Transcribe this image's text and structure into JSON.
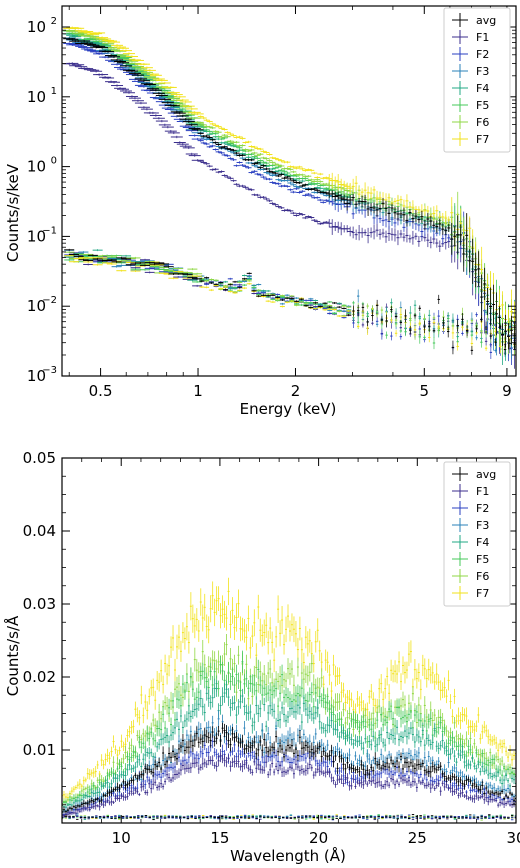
{
  "chart_data": [
    {
      "type": "scatter",
      "xlabel": "Energy (keV)",
      "ylabel": "Counts/s/keV",
      "xscale": "log",
      "yscale": "log",
      "xlim": [
        0.38,
        9.6
      ],
      "ylim": [
        0.001,
        200
      ],
      "xticks": [
        0.5,
        1,
        2,
        5,
        9
      ],
      "xtick_labels": [
        "0.5",
        "1",
        "2",
        "5",
        "9"
      ],
      "yticks": [
        0.001,
        0.01,
        0.1,
        1,
        10,
        100
      ],
      "ytick_labels": [
        "10",
        "10",
        "10",
        "10",
        "10",
        "10"
      ],
      "ytick_exponents": [
        "−3",
        "−2",
        "−1",
        "0",
        "1",
        "2"
      ],
      "grid": false,
      "legend_position": "top-right",
      "series": [
        {
          "name": "avg",
          "color": "#000000"
        },
        {
          "name": "F1",
          "color": "#3b2e8c"
        },
        {
          "name": "F2",
          "color": "#2a3fc0"
        },
        {
          "name": "F3",
          "color": "#2a82b8"
        },
        {
          "name": "F4",
          "color": "#22a884"
        },
        {
          "name": "F5",
          "color": "#44c85a"
        },
        {
          "name": "F6",
          "color": "#8fd744"
        },
        {
          "name": "F7",
          "color": "#f2e21a"
        }
      ],
      "source_spectra": {
        "x": [
          0.4,
          0.5,
          0.6,
          0.8,
          1.0,
          1.3,
          1.6,
          2.0,
          2.5,
          3.0,
          3.5,
          4.0,
          5.0,
          6.0,
          6.5,
          7.0,
          7.5,
          8.0,
          9.0
        ],
        "avg": [
          70,
          50,
          28,
          9.0,
          3.2,
          1.6,
          0.95,
          0.6,
          0.42,
          0.32,
          0.26,
          0.22,
          0.17,
          0.12,
          0.1,
          0.05,
          0.02,
          0.008,
          0.004
        ],
        "F1": [
          30,
          22,
          12,
          3.8,
          1.3,
          0.6,
          0.35,
          0.21,
          0.15,
          0.12,
          0.11,
          0.1,
          0.09,
          0.08,
          0.07,
          0.04,
          0.015,
          0.006,
          0.003
        ],
        "F2": [
          60,
          42,
          24,
          7.5,
          2.5,
          1.2,
          0.7,
          0.45,
          0.32,
          0.25,
          0.21,
          0.18,
          0.14,
          0.1,
          0.09,
          0.045,
          0.018,
          0.007,
          0.0035
        ],
        "F3": [
          70,
          50,
          28,
          9.0,
          3.0,
          1.5,
          0.85,
          0.55,
          0.38,
          0.3,
          0.25,
          0.21,
          0.16,
          0.12,
          0.1,
          0.05,
          0.02,
          0.008,
          0.004
        ],
        "F4": [
          80,
          58,
          33,
          10.5,
          3.6,
          1.8,
          1.05,
          0.65,
          0.45,
          0.35,
          0.29,
          0.24,
          0.18,
          0.13,
          0.11,
          0.055,
          0.022,
          0.009,
          0.0045
        ],
        "F5": [
          85,
          62,
          35,
          11.5,
          4.0,
          2.0,
          1.15,
          0.72,
          0.5,
          0.38,
          0.31,
          0.26,
          0.19,
          0.14,
          0.12,
          0.06,
          0.024,
          0.01,
          0.005
        ],
        "F6": [
          90,
          66,
          38,
          12.5,
          4.4,
          2.2,
          1.3,
          0.8,
          0.55,
          0.42,
          0.34,
          0.28,
          0.21,
          0.15,
          0.13,
          0.065,
          0.026,
          0.011,
          0.0055
        ],
        "F7": [
          100,
          75,
          45,
          15,
          5.5,
          2.8,
          1.6,
          1.0,
          0.68,
          0.5,
          0.4,
          0.33,
          0.24,
          0.17,
          0.14,
          0.07,
          0.028,
          0.012,
          0.006
        ]
      },
      "background_spectra": {
        "x": [
          0.4,
          0.5,
          0.7,
          0.9,
          1.1,
          1.3,
          1.45,
          1.5,
          1.6,
          1.8,
          2.0,
          2.5,
          3.0,
          4.0,
          5.0,
          6.0,
          7.0,
          8.0,
          9.0
        ],
        "avg": [
          0.055,
          0.048,
          0.04,
          0.03,
          0.022,
          0.018,
          0.026,
          0.017,
          0.015,
          0.013,
          0.012,
          0.01,
          0.008,
          0.0065,
          0.0055,
          0.0048,
          0.0045,
          0.004,
          0.0035
        ]
      }
    },
    {
      "type": "scatter",
      "xlabel": "Wavelength (Å)",
      "ylabel": "Counts/s/Å",
      "xlim": [
        7,
        30
      ],
      "ylim": [
        0,
        0.05
      ],
      "xticks": [
        10,
        15,
        20,
        25,
        30
      ],
      "xtick_labels": [
        "10",
        "15",
        "20",
        "25",
        "30"
      ],
      "yticks": [
        0.01,
        0.02,
        0.03,
        0.04,
        0.05
      ],
      "ytick_labels": [
        "0.01",
        "0.02",
        "0.03",
        "0.04",
        "0.05"
      ],
      "grid": false,
      "legend_position": "top-right",
      "series": [
        {
          "name": "avg",
          "color": "#000000"
        },
        {
          "name": "F1",
          "color": "#3b2e8c"
        },
        {
          "name": "F2",
          "color": "#2a3fc0"
        },
        {
          "name": "F3",
          "color": "#2a82b8"
        },
        {
          "name": "F4",
          "color": "#22a884"
        },
        {
          "name": "F5",
          "color": "#44c85a"
        },
        {
          "name": "F6",
          "color": "#8fd744"
        },
        {
          "name": "F7",
          "color": "#f2e21a"
        }
      ],
      "source_spectra": {
        "x": [
          7,
          8,
          9,
          10,
          11,
          12,
          13,
          14,
          15,
          16,
          17,
          18,
          19,
          20,
          21,
          22,
          23,
          24,
          25,
          26,
          27,
          28,
          29,
          30
        ],
        "avg": [
          0.0015,
          0.0025,
          0.0035,
          0.005,
          0.0065,
          0.008,
          0.01,
          0.0115,
          0.012,
          0.0112,
          0.0105,
          0.0102,
          0.0105,
          0.01,
          0.0085,
          0.0075,
          0.0078,
          0.0082,
          0.008,
          0.0072,
          0.006,
          0.005,
          0.0042,
          0.0035
        ],
        "F1": [
          0.001,
          0.0018,
          0.0025,
          0.0035,
          0.0045,
          0.0055,
          0.007,
          0.008,
          0.0085,
          0.008,
          0.0075,
          0.0073,
          0.0078,
          0.007,
          0.006,
          0.0052,
          0.0055,
          0.0058,
          0.0056,
          0.005,
          0.0042,
          0.0035,
          0.003,
          0.0025
        ],
        "F2": [
          0.0012,
          0.002,
          0.003,
          0.0042,
          0.0055,
          0.0068,
          0.0085,
          0.0097,
          0.01,
          0.0095,
          0.009,
          0.0088,
          0.009,
          0.0085,
          0.0072,
          0.0063,
          0.0066,
          0.007,
          0.0068,
          0.0061,
          0.0051,
          0.0043,
          0.0036,
          0.003
        ],
        "F3": [
          0.0015,
          0.0025,
          0.0036,
          0.005,
          0.0066,
          0.0082,
          0.0105,
          0.0125,
          0.013,
          0.0122,
          0.0115,
          0.0112,
          0.0115,
          0.0108,
          0.0092,
          0.0082,
          0.0086,
          0.0092,
          0.009,
          0.0082,
          0.0068,
          0.0056,
          0.0047,
          0.004
        ],
        "F4": [
          0.002,
          0.0032,
          0.0046,
          0.0064,
          0.0085,
          0.0108,
          0.014,
          0.0165,
          0.0172,
          0.0162,
          0.0152,
          0.0148,
          0.0152,
          0.0142,
          0.012,
          0.0108,
          0.0114,
          0.0122,
          0.012,
          0.011,
          0.0092,
          0.0076,
          0.0064,
          0.0055
        ],
        "F5": [
          0.0024,
          0.0038,
          0.0055,
          0.0076,
          0.0102,
          0.013,
          0.0168,
          0.0195,
          0.0202,
          0.019,
          0.018,
          0.0176,
          0.018,
          0.0168,
          0.0142,
          0.0128,
          0.0135,
          0.0145,
          0.0142,
          0.013,
          0.011,
          0.009,
          0.0076,
          0.0065
        ],
        "F6": [
          0.0027,
          0.0042,
          0.006,
          0.0084,
          0.0113,
          0.0145,
          0.0185,
          0.0212,
          0.022,
          0.0206,
          0.0195,
          0.019,
          0.0195,
          0.0182,
          0.0155,
          0.014,
          0.0148,
          0.0158,
          0.0155,
          0.0142,
          0.012,
          0.0098,
          0.0083,
          0.007
        ],
        "F7": [
          0.0035,
          0.0055,
          0.008,
          0.011,
          0.015,
          0.0195,
          0.025,
          0.0285,
          0.0295,
          0.028,
          0.0268,
          0.0262,
          0.0265,
          0.024,
          0.0185,
          0.0165,
          0.0175,
          0.021,
          0.0215,
          0.0195,
          0.016,
          0.013,
          0.011,
          0.0092
        ]
      },
      "background_level": 0.0008
    }
  ]
}
